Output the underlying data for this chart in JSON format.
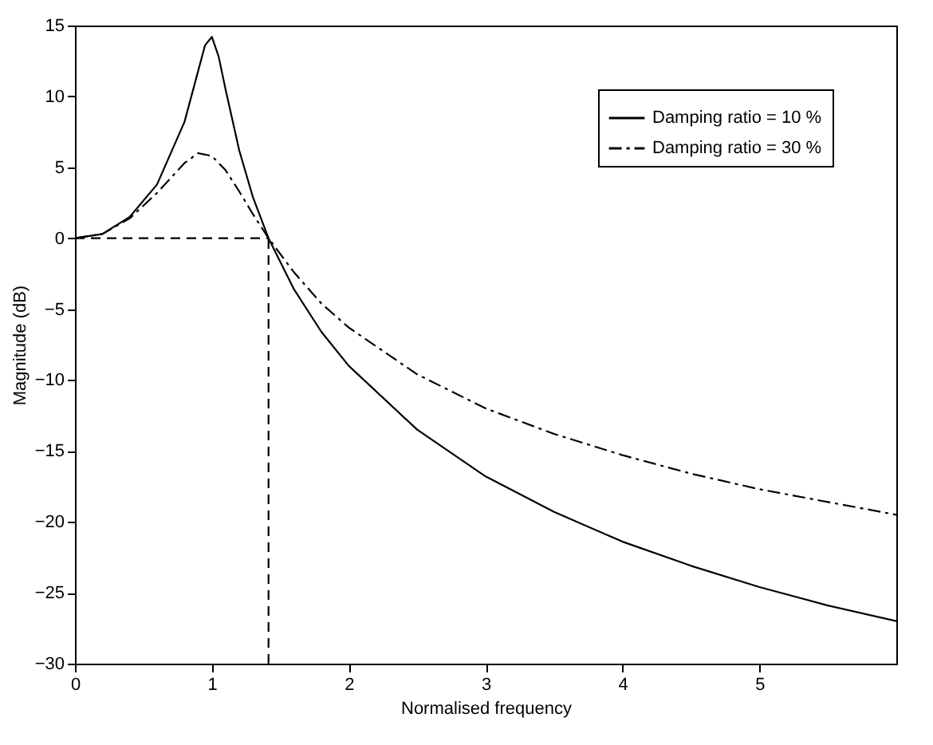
{
  "chart_data": {
    "type": "line",
    "xlabel": "Normalised frequency",
    "ylabel": "Magnitude (dB)",
    "x": [
      0,
      0.2,
      0.4,
      0.6,
      0.8,
      0.9,
      0.95,
      1.0,
      1.05,
      1.1,
      1.2,
      1.3,
      1.414,
      1.6,
      1.8,
      2.0,
      2.5,
      3.0,
      3.5,
      4.0,
      4.5,
      5.0,
      5.5,
      6.0
    ],
    "series": [
      {
        "name": "Damping ratio = 10 %",
        "color": "#000000",
        "line_style": "solid",
        "values": [
          0,
          0.3,
          1.5,
          3.8,
          8.2,
          11.8,
          13.6,
          14.2,
          12.8,
          10.5,
          6.2,
          2.9,
          0,
          -3.6,
          -6.6,
          -9.0,
          -13.5,
          -16.8,
          -19.3,
          -21.4,
          -23.1,
          -24.6,
          -25.9,
          -27.0
        ]
      },
      {
        "name": "Damping ratio = 30 %",
        "color": "#000000",
        "line_style": "dashdot",
        "x": [
          0,
          0.2,
          0.4,
          0.6,
          0.8,
          0.9,
          1.0,
          1.1,
          1.2,
          1.3,
          1.414,
          1.6,
          1.8,
          2.0,
          2.5,
          3.0,
          3.5,
          4.0,
          4.5,
          5.0,
          5.5,
          6.0
        ],
        "values": [
          0,
          0.3,
          1.4,
          3.2,
          5.3,
          6.0,
          5.8,
          4.8,
          3.3,
          1.7,
          0,
          -2.4,
          -4.6,
          -6.3,
          -9.6,
          -12.0,
          -13.8,
          -15.3,
          -16.6,
          -17.7,
          -18.6,
          -19.5
        ]
      },
      {
        "color": "#000000",
        "line_style": "dashed",
        "x": [
          0,
          1.414
        ],
        "values": [
          0,
          0
        ]
      },
      {
        "color": "#000000",
        "line_style": "dashed",
        "x": [
          1.414,
          1.414
        ],
        "values": [
          -30,
          0
        ]
      }
    ],
    "xlim": [
      0,
      6
    ],
    "xticks": [
      0,
      1,
      2,
      3,
      4,
      5
    ],
    "ylim": [
      -30,
      15
    ],
    "yticks": [
      -30,
      -25,
      -20,
      -15,
      -10,
      -5,
      0,
      5,
      10,
      15
    ],
    "grid": false,
    "legend": "top right",
    "marker": "none"
  }
}
